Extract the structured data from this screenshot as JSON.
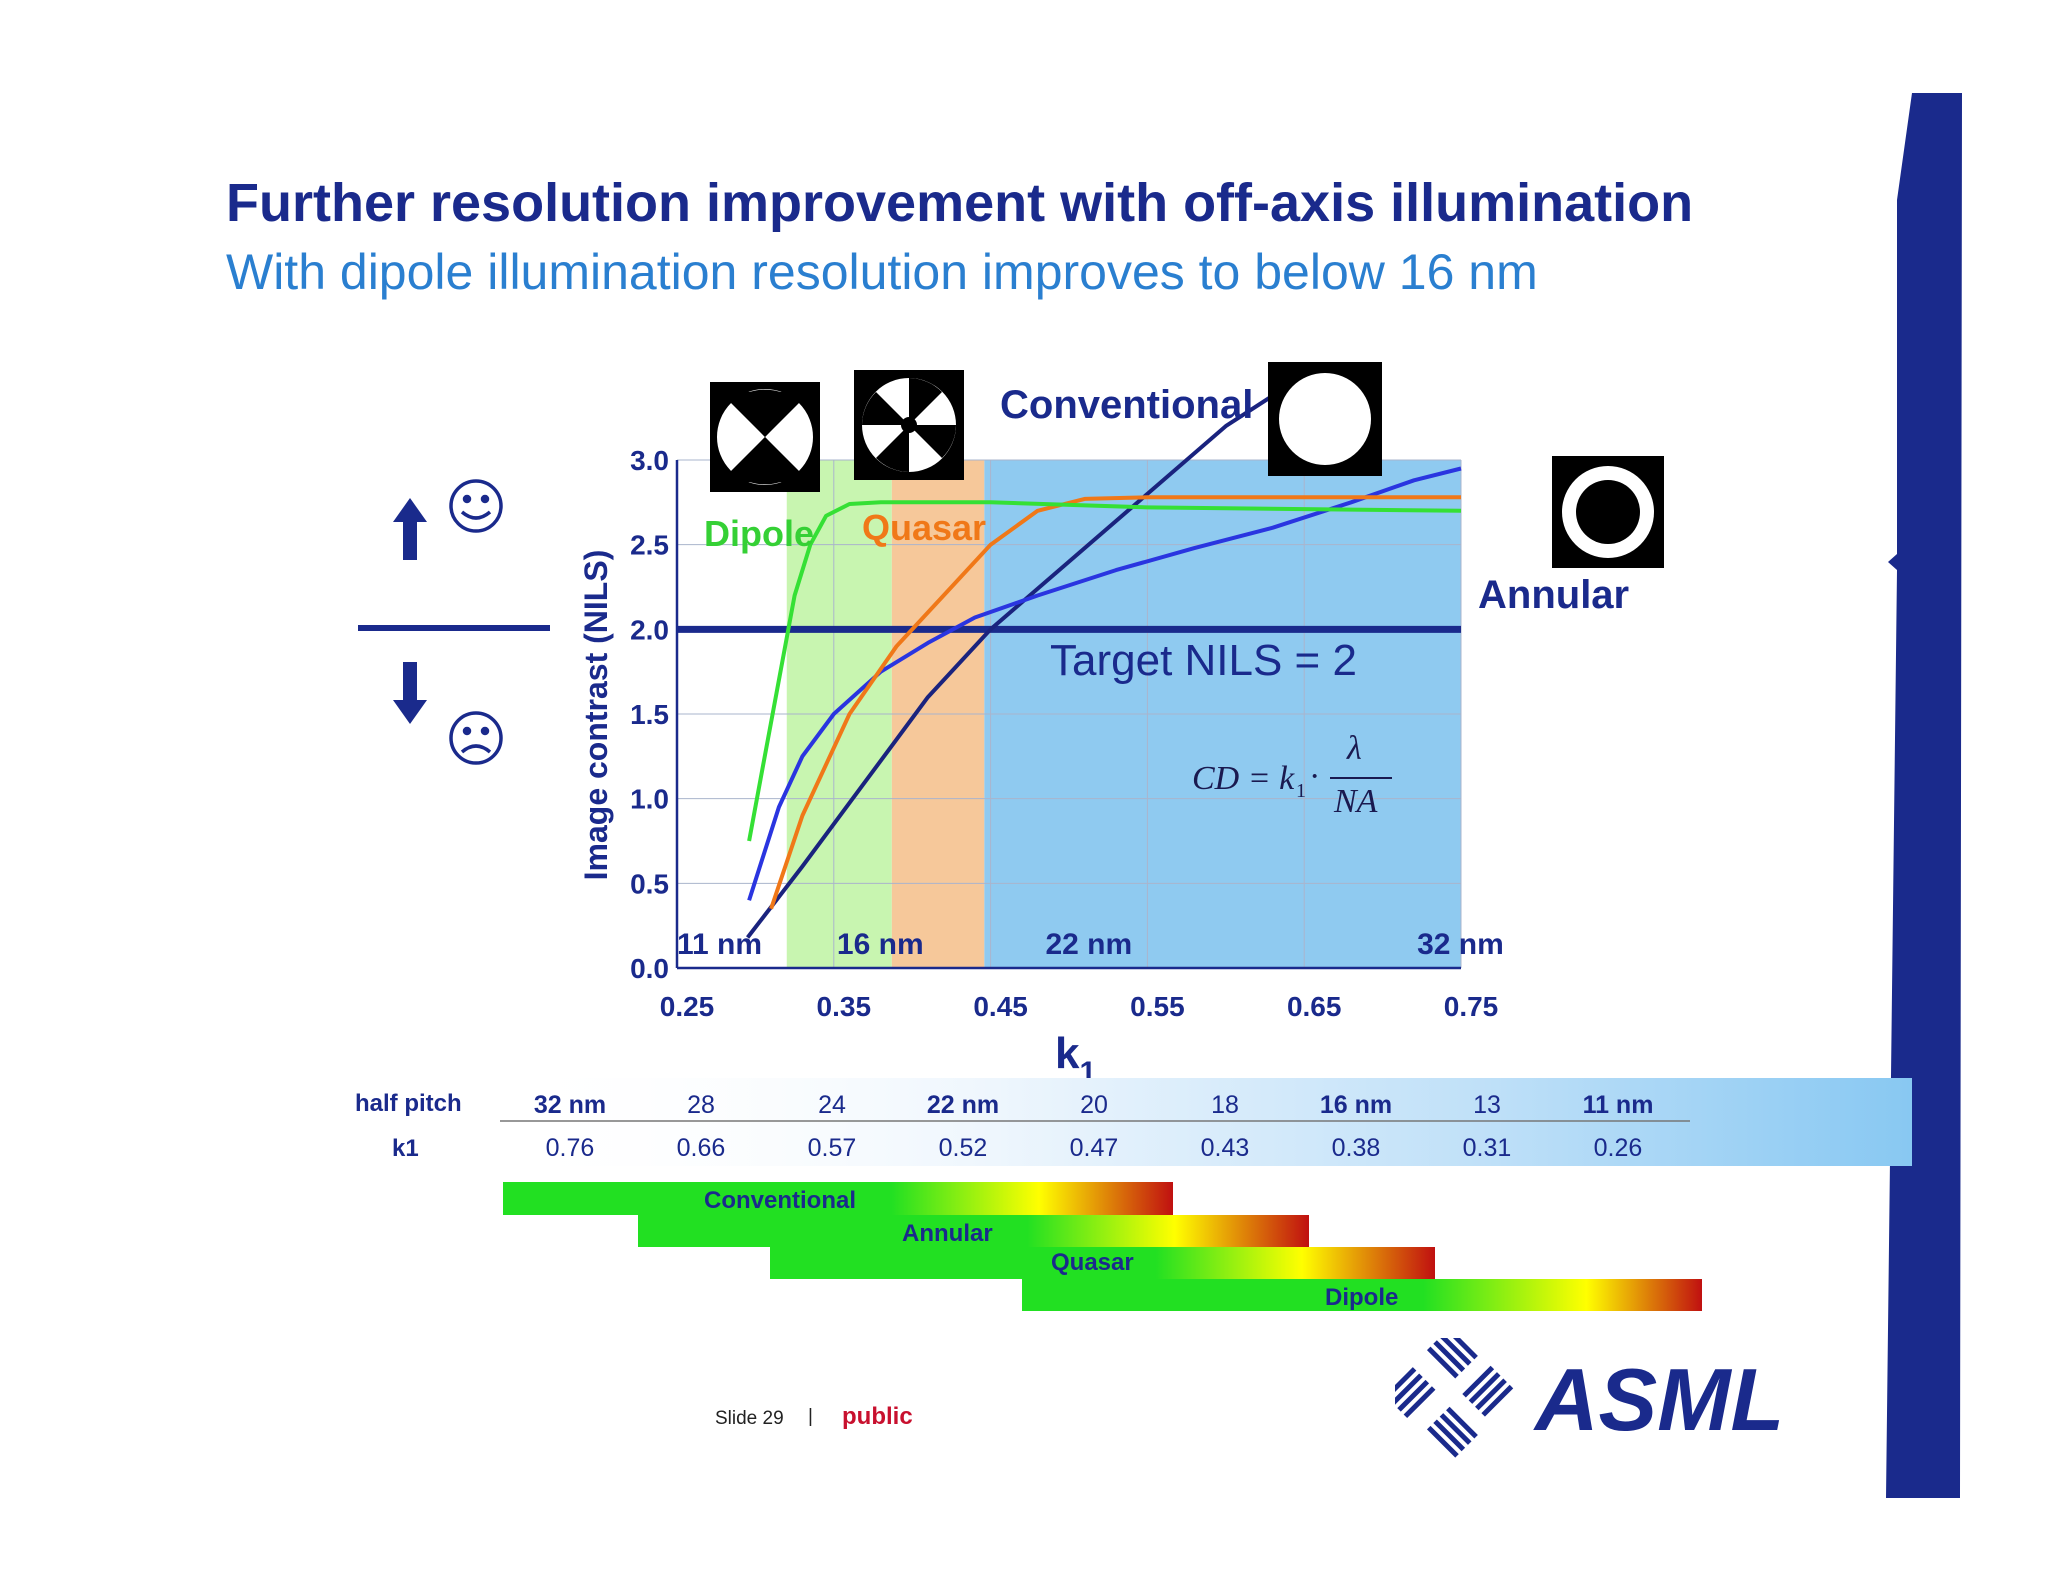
{
  "slide": {
    "title": "Further resolution improvement with off-axis illumination",
    "subtitle": "With dipole illumination resolution improves to below 16 nm",
    "slide_number": "Slide 29",
    "separator": "|",
    "classification": "public",
    "brand_color": "#1a2a8c"
  },
  "logo": {
    "text": "ASML",
    "icon": "asml-logo-icon"
  },
  "side_indicator": {
    "up_icon": "arrow-up-icon",
    "happy_icon": "smiley-happy-icon",
    "down_icon": "arrow-down-icon",
    "sad_icon": "smiley-sad-icon"
  },
  "chart_data": {
    "type": "line",
    "title": "",
    "xlabel": "k",
    "xlabel_subscript": "1",
    "ylabel": "Image contrast (NILS)",
    "xlim": [
      0.25,
      0.75
    ],
    "ylim": [
      0.0,
      3.0
    ],
    "x_ticks": [
      "0.25",
      "0.35",
      "0.45",
      "0.55",
      "0.65",
      "0.75"
    ],
    "y_ticks": [
      "0.0",
      "0.5",
      "1.0",
      "1.5",
      "2.0",
      "2.5",
      "3.0"
    ],
    "grid": true,
    "regions": [
      {
        "from": 0.32,
        "to": 0.387,
        "color": "#c8f5b0"
      },
      {
        "from": 0.387,
        "to": 0.446,
        "color": "#f6c89a"
      },
      {
        "from": 0.446,
        "to": 0.75,
        "color": "#8fcaf0"
      }
    ],
    "node_labels": [
      {
        "text": "11 nm",
        "k1": 0.25
      },
      {
        "text": "16 nm",
        "k1": 0.36
      },
      {
        "text": "22 nm",
        "k1": 0.495
      },
      {
        "text": "32 nm",
        "k1": 0.73
      }
    ],
    "target": {
      "label": "Target NILS = 2",
      "value": 2.0
    },
    "formula": {
      "lhs": "CD = k",
      "sub": "1",
      "dot": "·",
      "numerator": "λ",
      "denominator": "NA"
    },
    "series": [
      {
        "name": "Conventional",
        "color": "#1a237e",
        "x": [
          0.295,
          0.33,
          0.37,
          0.41,
          0.45,
          0.5,
          0.55,
          0.6,
          0.65
        ],
        "y": [
          0.18,
          0.6,
          1.1,
          1.6,
          2.0,
          2.4,
          2.8,
          3.2,
          3.5
        ]
      },
      {
        "name": "Annular",
        "color": "#2a35e0",
        "x": [
          0.296,
          0.315,
          0.33,
          0.35,
          0.38,
          0.41,
          0.44,
          0.48,
          0.53,
          0.58,
          0.63,
          0.68,
          0.72,
          0.75
        ],
        "y": [
          0.4,
          0.95,
          1.25,
          1.5,
          1.75,
          1.92,
          2.07,
          2.2,
          2.35,
          2.48,
          2.6,
          2.75,
          2.88,
          2.95
        ]
      },
      {
        "name": "Quasar",
        "color": "#f07818",
        "x": [
          0.31,
          0.33,
          0.36,
          0.39,
          0.42,
          0.45,
          0.48,
          0.51,
          0.55,
          0.75
        ],
        "y": [
          0.35,
          0.9,
          1.5,
          1.9,
          2.2,
          2.5,
          2.7,
          2.77,
          2.78,
          2.78
        ]
      },
      {
        "name": "Dipole",
        "color": "#35e035",
        "x": [
          0.296,
          0.305,
          0.315,
          0.325,
          0.335,
          0.345,
          0.36,
          0.38,
          0.45,
          0.55,
          0.75
        ],
        "y": [
          0.75,
          1.2,
          1.7,
          2.2,
          2.5,
          2.67,
          2.74,
          2.75,
          2.75,
          2.72,
          2.7
        ]
      }
    ],
    "series_labels": [
      {
        "name": "Dipole",
        "color": "#35d035"
      },
      {
        "name": "Quasar",
        "color": "#f07818"
      },
      {
        "name": "Conventional",
        "color": "#1a2a8c"
      },
      {
        "name": "Annular",
        "color": "#1a2a8c"
      }
    ],
    "pupil_icons": [
      "dipole-pupil-icon",
      "quasar-pupil-icon",
      "conventional-pupil-icon",
      "annular-pupil-icon"
    ]
  },
  "table": {
    "row_labels": [
      "half pitch",
      "k1"
    ],
    "half_pitch": [
      "32 nm",
      "28",
      "24",
      "22 nm",
      "20",
      "18",
      "16 nm",
      "13",
      "11 nm"
    ],
    "half_pitch_bold": [
      true,
      false,
      false,
      true,
      false,
      false,
      true,
      false,
      true
    ],
    "k1": [
      "0.76",
      "0.66",
      "0.57",
      "0.52",
      "0.47",
      "0.43",
      "0.38",
      "0.31",
      "0.26"
    ]
  },
  "capability_bars": [
    {
      "label": "Conventional"
    },
    {
      "label": "Annular"
    },
    {
      "label": "Quasar"
    },
    {
      "label": "Dipole"
    }
  ]
}
